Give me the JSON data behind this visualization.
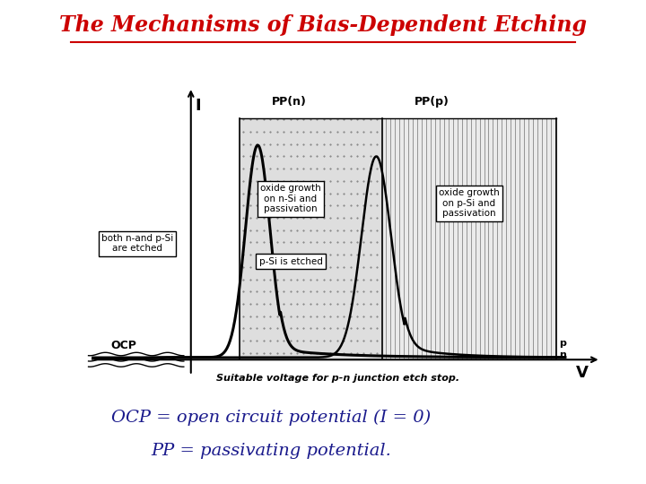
{
  "title": "The Mechanisms of Bias-Dependent Etching",
  "title_color": "#cc0000",
  "title_fontsize": 17,
  "ocp_label": "OCP",
  "pp_n_label": "PP(n)",
  "pp_p_label": "PP(p)",
  "I_label": "I",
  "V_label": "V",
  "subtitle1": "OCP = open circuit potential (I = 0)",
  "subtitle2": "PP = passivating potential.",
  "subtitle_color": "#1a1a8c",
  "subtitle_fontsize": 14,
  "box1_text": "both n-and p-Si\nare etched",
  "box2_text": "oxide growth\non n-Si and\npassivation",
  "box3_text": "p-Si is etched",
  "box4_text": "oxide growth\non p-Si and\npassivation",
  "bottom_text": "Suitable voltage for p-n junction etch stop.",
  "bg_color": "#ffffff"
}
